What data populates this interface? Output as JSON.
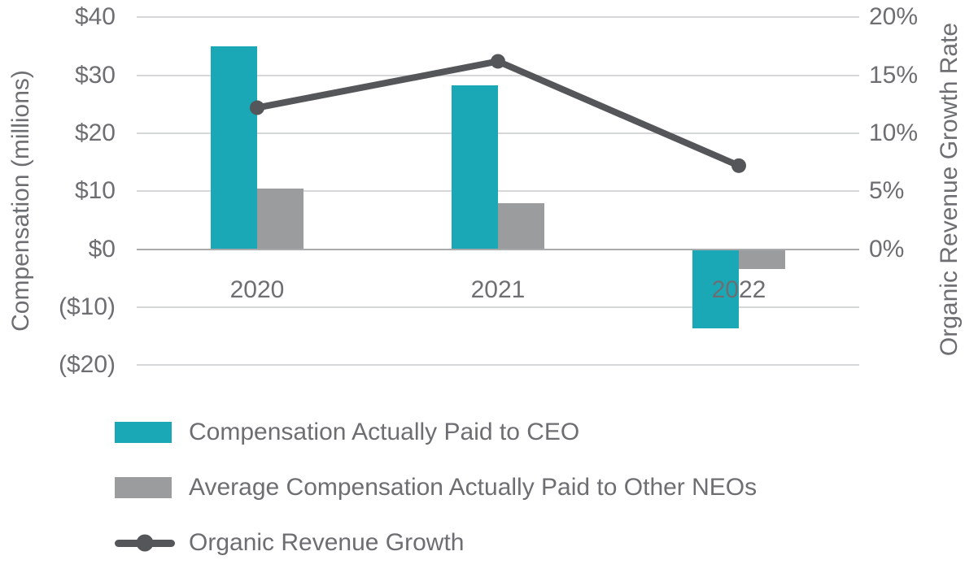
{
  "colors": {
    "teal": "#1BA8B6",
    "bar_gray": "#9B9C9E",
    "line_gray": "#55565A",
    "text": "#6D6E71",
    "grid": "#D6D7D8",
    "zero_axis": "#A8AAAC",
    "background": "#FFFFFF"
  },
  "chart_data": {
    "type": "combo (bar + line)",
    "title": "",
    "categories": [
      "2020",
      "2021",
      "2022"
    ],
    "series": [
      {
        "name": "Compensation Actually Paid to CEO",
        "type": "bar",
        "axis": "left",
        "unit": "$ millions",
        "color_key": "teal",
        "values": [
          35.0,
          28.2,
          -13.7
        ]
      },
      {
        "name": "Average Compensation Actually Paid to Other NEOs",
        "type": "bar",
        "axis": "left",
        "unit": "$ millions",
        "color_key": "bar_gray",
        "values": [
          10.4,
          7.9,
          -3.5
        ]
      },
      {
        "name": "Organic Revenue Growth",
        "type": "line",
        "axis": "right",
        "unit": "%",
        "color_key": "line_gray",
        "values": [
          12.2,
          16.2,
          7.2
        ]
      }
    ],
    "left_axis": {
      "title": "Compensation (millions)",
      "range": [
        -20,
        40
      ],
      "ticks": [
        {
          "label": "$40",
          "value": 40
        },
        {
          "label": "$30",
          "value": 30
        },
        {
          "label": "$20",
          "value": 20
        },
        {
          "label": "$10",
          "value": 10
        },
        {
          "label": "$0",
          "value": 0
        },
        {
          "label": "($10)",
          "value": -10
        },
        {
          "label": "($20)",
          "value": -20
        }
      ]
    },
    "right_axis": {
      "title": "Organic Revenue Growth Rate",
      "range": [
        -10,
        20
      ],
      "ticks": [
        {
          "label": "20%",
          "value": 20
        },
        {
          "label": "15%",
          "value": 15
        },
        {
          "label": "10%",
          "value": 10
        },
        {
          "label": "5%",
          "value": 5
        },
        {
          "label": "0%",
          "value": 0
        }
      ]
    },
    "grid": true,
    "legend_position": "bottom-left"
  }
}
